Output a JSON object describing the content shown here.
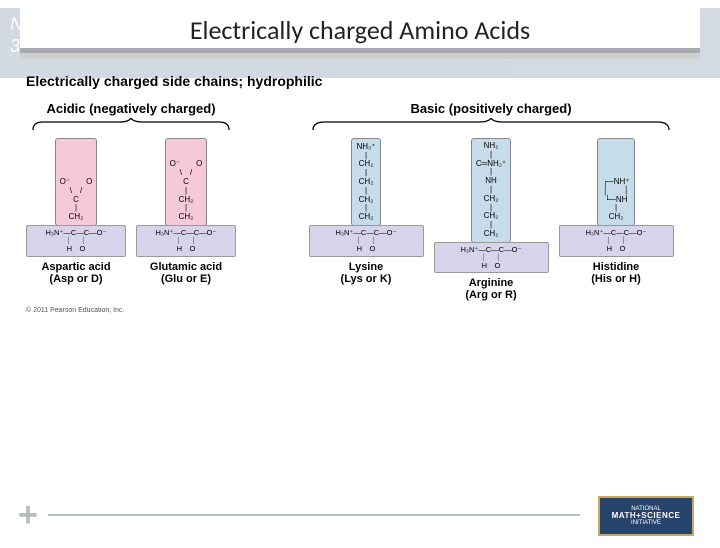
{
  "title": "Electrically charged Amino Acids",
  "section_heading": "Electrically charged side chains; hydrophilic",
  "groups": {
    "acidic": {
      "label": "Acidic (negatively charged)",
      "box_color": "#f6c9d6",
      "brace_color": "#000000",
      "aminos": [
        {
          "name": "Aspartic acid",
          "abbr": "(Asp or D)",
          "sidechain": [
            "O⁻　　O",
            "\\　/",
            "C",
            "|",
            "CH₂"
          ]
        },
        {
          "name": "Glutamic acid",
          "abbr": "(Glu or E)",
          "sidechain": [
            "O⁻　　O",
            "\\　/",
            "C",
            "|",
            "CH₂",
            "|",
            "CH₂"
          ]
        }
      ]
    },
    "basic": {
      "label": "Basic (positively charged)",
      "box_color": "#c6dceb",
      "brace_color": "#000000",
      "aminos": [
        {
          "name": "Lysine",
          "abbr": "(Lys or K)",
          "sidechain": [
            "NH₃⁺",
            "|",
            "CH₂",
            "|",
            "CH₂",
            "|",
            "CH₂",
            "|",
            "CH₂"
          ]
        },
        {
          "name": "Arginine",
          "abbr": "(Arg or R)",
          "sidechain": [
            "NH₂",
            "|",
            "C═NH₂⁺",
            "|",
            "NH",
            "|",
            "CH₂",
            "|",
            "CH₂",
            "|",
            "CH₂"
          ]
        },
        {
          "name": "Histidine",
          "abbr": "(His or H)",
          "sidechain": [
            "┌─NH⁺",
            "│　　│",
            "└─NH",
            "|",
            "CH₂"
          ]
        }
      ]
    }
  },
  "backbone": {
    "line1": "H₃N⁺—C—C—O⁻",
    "line2": "｜　｜",
    "line3": "H　O",
    "bg_color": "#d6d3ea"
  },
  "copyright": "© 2011 Pearson Education, Inc.",
  "footer": {
    "plus_color": "#b6bcc0",
    "line_color": "#b6bcc0",
    "logo": {
      "top": "NATIONAL",
      "mid": "MATH+SCIENCE",
      "bottom": "INITIATIVE",
      "bg": "#26436b",
      "border": "#c8a962"
    }
  }
}
